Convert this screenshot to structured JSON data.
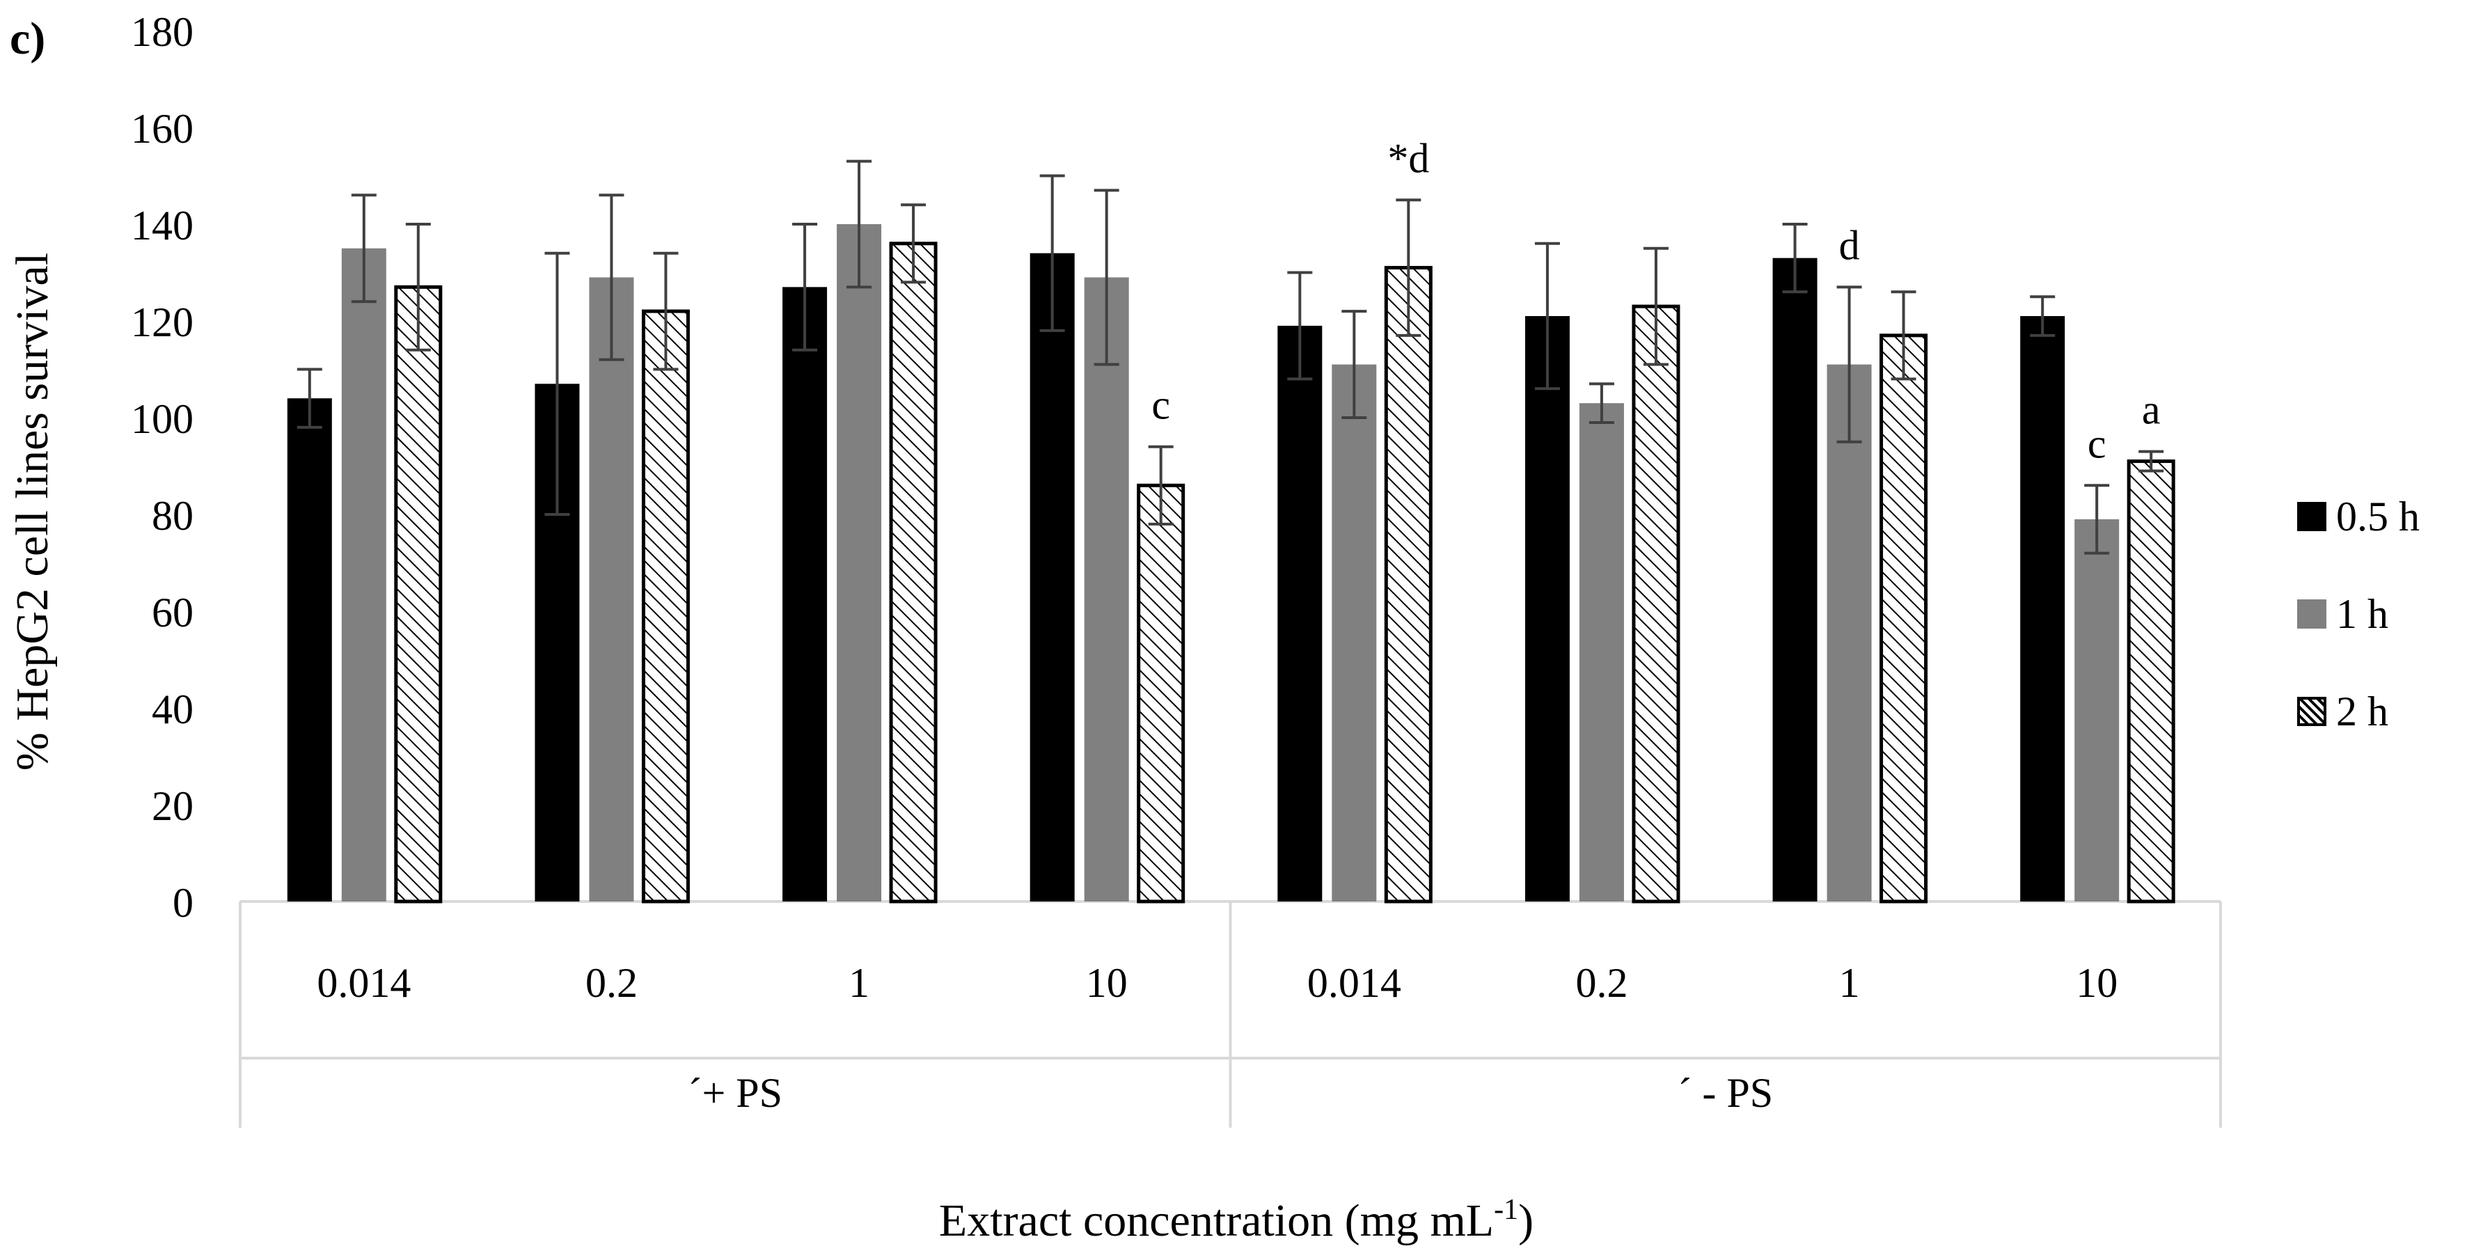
{
  "panel_label": "c)",
  "colors": {
    "s0": "#000000",
    "s1": "#808080",
    "s2": "#ffffff",
    "axis": "#d9d9d9",
    "error": "#404040"
  },
  "chart_data": {
    "type": "bar",
    "ylabel": "% HepG2 cell lines survival",
    "xlabel": "Extract concentration (mg mL",
    "xlabel_sup": "-1",
    "xlabel_close": ")",
    "ylim": [
      0,
      180
    ],
    "y_ticks": [
      "0",
      "20",
      "40",
      "60",
      "80",
      "100",
      "120",
      "140",
      "160",
      "180"
    ],
    "grid": false,
    "legend_position": "right",
    "categories": [
      "0.014",
      "0.2",
      "1",
      "10",
      "0.014",
      "0.2",
      "1",
      "10"
    ],
    "groups": [
      {
        "label": "´+ PS",
        "count": 4
      },
      {
        "label": "´ - PS",
        "count": 4
      }
    ],
    "series": [
      {
        "name": "0.5 h",
        "values": [
          104,
          107,
          127,
          134,
          119,
          121,
          133,
          121
        ],
        "errors": [
          6,
          27,
          13,
          16,
          11,
          15,
          7,
          4
        ]
      },
      {
        "name": "1 h",
        "values": [
          135,
          129,
          140,
          129,
          111,
          103,
          111,
          79
        ],
        "errors": [
          11,
          17,
          13,
          18,
          11,
          4,
          16,
          7
        ]
      },
      {
        "name": "2 h",
        "values": [
          127,
          122,
          136,
          86,
          131,
          123,
          117,
          91
        ],
        "errors": [
          13,
          12,
          8,
          8,
          14,
          12,
          9,
          2
        ]
      }
    ],
    "annotations": [
      {
        "category_index": 3,
        "series_index": 2,
        "text": "c"
      },
      {
        "category_index": 4,
        "series_index": 2,
        "text": "*d"
      },
      {
        "category_index": 6,
        "series_index": 1,
        "text": "d"
      },
      {
        "category_index": 7,
        "series_index": 1,
        "text": "c"
      },
      {
        "category_index": 7,
        "series_index": 2,
        "text": "a"
      }
    ]
  }
}
